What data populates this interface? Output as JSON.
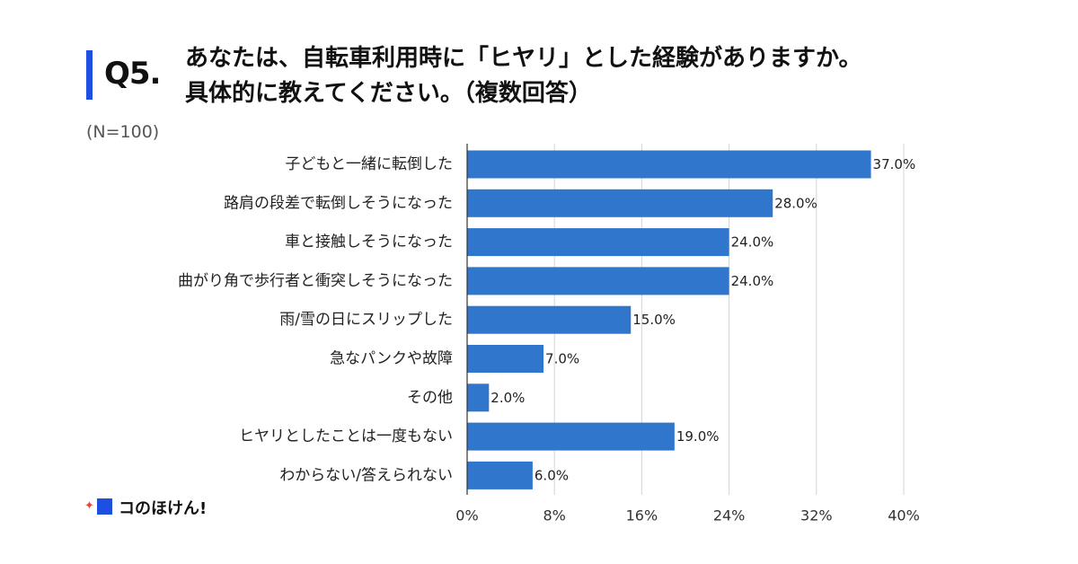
{
  "question": {
    "number": "Q5.",
    "title_line1": "あなたは、自転車利用時に「ヒヤリ」とした経験がありますか。",
    "title_line2": "具体的に教えてください。（複数回答）"
  },
  "sample_size": "(N=100)",
  "brand": {
    "name": "コのほけん!",
    "accent_color": "#1e4fe0",
    "star_color": "#e8443a"
  },
  "chart_data": {
    "type": "bar",
    "orientation": "horizontal",
    "categories": [
      "子どもと一緒に転倒した",
      "路肩の段差で転倒しそうになった",
      "車と接触しそうになった",
      "曲がり角で歩行者と衝突しそうになった",
      "雨/雪の日にスリップした",
      "急なパンクや故障",
      "その他",
      "ヒヤリとしたことは一度もない",
      "わからない/答えられない"
    ],
    "values": [
      37.0,
      28.0,
      24.0,
      24.0,
      15.0,
      7.0,
      2.0,
      19.0,
      6.0
    ],
    "value_labels": [
      "37.0%",
      "28.0%",
      "24.0%",
      "24.0%",
      "15.0%",
      "7.0%",
      "2.0%",
      "19.0%",
      "6.0%"
    ],
    "xlim": [
      0,
      40
    ],
    "xticks": [
      0,
      8,
      16,
      24,
      32,
      40
    ],
    "xtick_labels": [
      "0%",
      "8%",
      "16%",
      "24%",
      "32%",
      "40%"
    ],
    "grid": true,
    "bar_color": "#2f76cc"
  }
}
